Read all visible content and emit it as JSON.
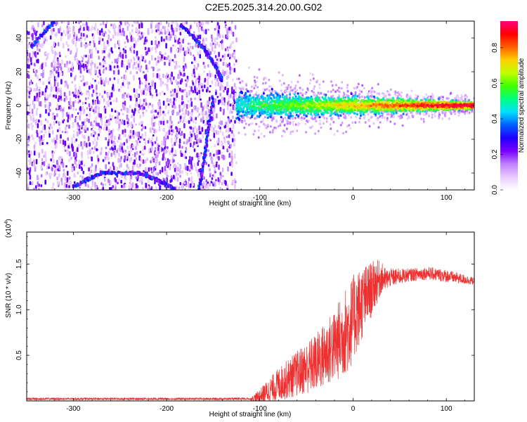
{
  "title": "C2E5.2025.314.20.00.G02",
  "chart_data": [
    {
      "type": "heatmap",
      "xlabel": "Height of straight line (km)",
      "ylabel": "Frequency (Hz)",
      "xlim": [
        -350,
        130
      ],
      "ylim": [
        -50,
        50
      ],
      "xticks": [
        -300,
        -200,
        -100,
        0,
        100
      ],
      "yticks": [
        -40,
        -20,
        0,
        20,
        40
      ],
      "colorbar": {
        "label": "Normalized spectral amplitude",
        "range": [
          0,
          0.95
        ],
        "ticks": [
          0,
          0.2,
          0.4,
          0.6,
          0.8
        ],
        "colors": [
          "#ffffff",
          "#e8c8ff",
          "#c080ff",
          "#7a00ff",
          "#2000ff",
          "#0060ff",
          "#00e0ff",
          "#00ff80",
          "#40ff00",
          "#c0ff00",
          "#ffd000",
          "#ff6000",
          "#ff0000",
          "#ff0080"
        ]
      },
      "regions": {
        "noise_band_x": [
          -350,
          -125
        ],
        "signal_band_x": [
          -125,
          130
        ],
        "signal_band_center_hz": 0,
        "signal_band_halfwidth_hz_start": 12,
        "signal_band_halfwidth_hz_end": 3
      },
      "arcs": [
        {
          "name": "upper-arc",
          "points": [
            [
              -345,
              35
            ],
            [
              -320,
              50
            ]
          ]
        },
        {
          "name": "upper-right-arc",
          "points": [
            [
              -185,
              48
            ],
            [
              -160,
              34
            ],
            [
              -148,
              24
            ],
            [
              -140,
              14
            ]
          ]
        },
        {
          "name": "lower-arc",
          "points": [
            [
              -300,
              -48
            ],
            [
              -270,
              -40
            ],
            [
              -230,
              -40
            ],
            [
              -210,
              -44
            ],
            [
              -190,
              -50
            ]
          ]
        },
        {
          "name": "vertical-streak",
          "points": [
            [
              -150,
              5
            ],
            [
              -158,
              -25
            ],
            [
              -165,
              -50
            ]
          ]
        }
      ]
    },
    {
      "type": "line",
      "xlabel": "Height of straight line (km)",
      "ylabel": "SNR (10 * v/v)",
      "multiplier_label": "(x10",
      "multiplier_exp": "4",
      "xlim": [
        -350,
        130
      ],
      "ylim": [
        0,
        1.85
      ],
      "xticks": [
        -300,
        -200,
        -100,
        0,
        100
      ],
      "yticks": [
        0.5,
        1.0,
        1.5
      ],
      "ytick_labels": [
        "0.5",
        "1.0",
        "1.5"
      ],
      "color": "#ee3030",
      "envelope": {
        "x": [
          -350,
          -110,
          -100,
          -80,
          -60,
          -40,
          -20,
          -5,
          5,
          15,
          25,
          30,
          35,
          40,
          60,
          80,
          100,
          130
        ],
        "mean": [
          0.02,
          0.02,
          0.05,
          0.18,
          0.3,
          0.42,
          0.6,
          0.8,
          1.0,
          1.15,
          1.3,
          1.35,
          1.33,
          1.35,
          1.38,
          1.4,
          1.37,
          1.31
        ],
        "spread": [
          0.01,
          0.01,
          0.08,
          0.18,
          0.25,
          0.32,
          0.4,
          0.5,
          0.45,
          0.35,
          0.25,
          0.18,
          0.12,
          0.1,
          0.07,
          0.07,
          0.07,
          0.04
        ]
      }
    }
  ]
}
